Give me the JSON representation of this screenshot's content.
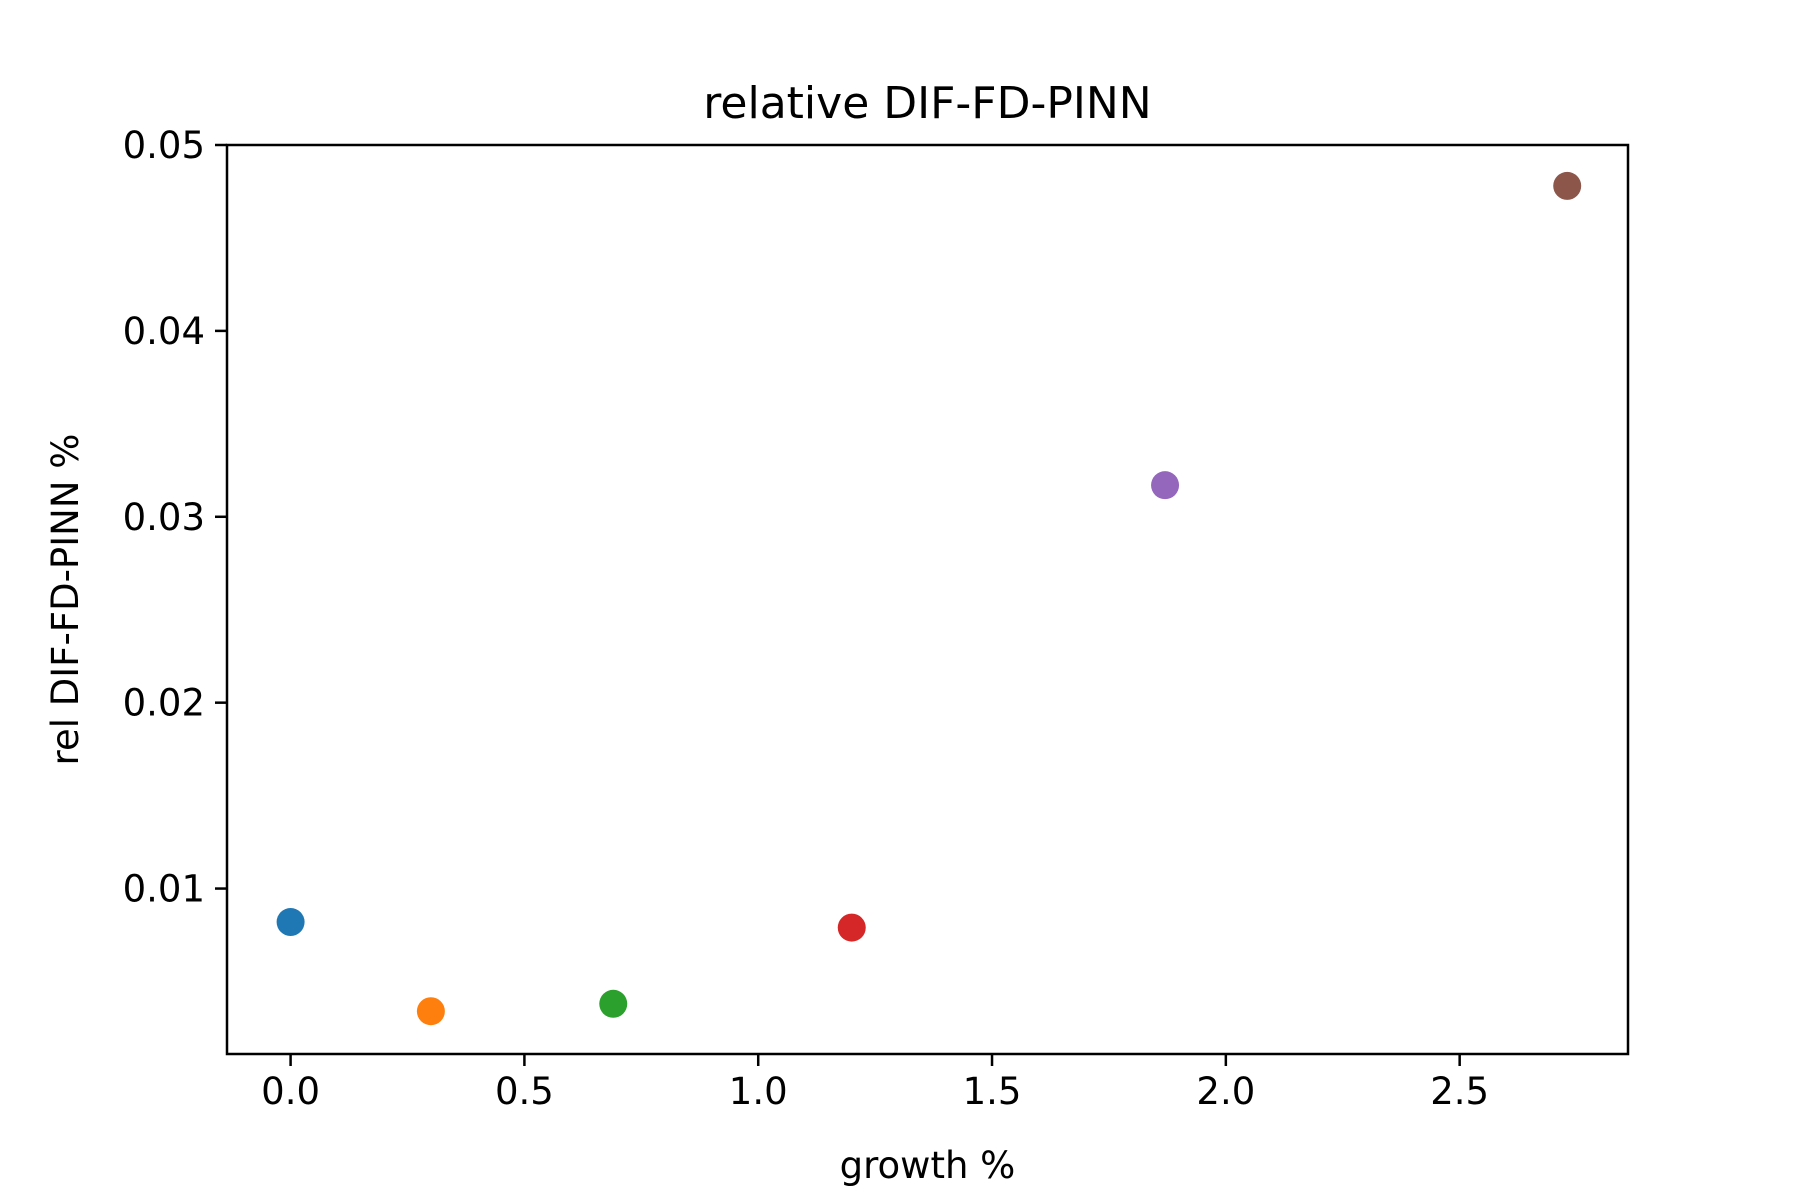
{
  "chart_data": {
    "type": "scatter",
    "title": "relative DIF-FD-PINN",
    "xlabel": "growth %",
    "ylabel": "rel DIF-FD-PINN %",
    "xlim": [
      -0.136,
      2.86
    ],
    "ylim": [
      0.0011,
      0.05
    ],
    "xticks": [
      0.0,
      0.5,
      1.0,
      1.5,
      2.0,
      2.5
    ],
    "xtick_labels": [
      "0.0",
      "0.5",
      "1.0",
      "1.5",
      "2.0",
      "2.5"
    ],
    "yticks": [
      0.01,
      0.02,
      0.03,
      0.04,
      0.05
    ],
    "ytick_labels": [
      "0.01",
      "0.02",
      "0.03",
      "0.04",
      "0.05"
    ],
    "grid": false,
    "points": [
      {
        "x": 0.0,
        "y": 0.0082,
        "color": "#1f77b4"
      },
      {
        "x": 0.3,
        "y": 0.0034,
        "color": "#ff7f0e"
      },
      {
        "x": 0.69,
        "y": 0.0038,
        "color": "#2ca02c"
      },
      {
        "x": 1.2,
        "y": 0.0079,
        "color": "#d62728"
      },
      {
        "x": 1.87,
        "y": 0.0317,
        "color": "#9467bd"
      },
      {
        "x": 2.73,
        "y": 0.0478,
        "color": "#8c564b"
      }
    ]
  }
}
